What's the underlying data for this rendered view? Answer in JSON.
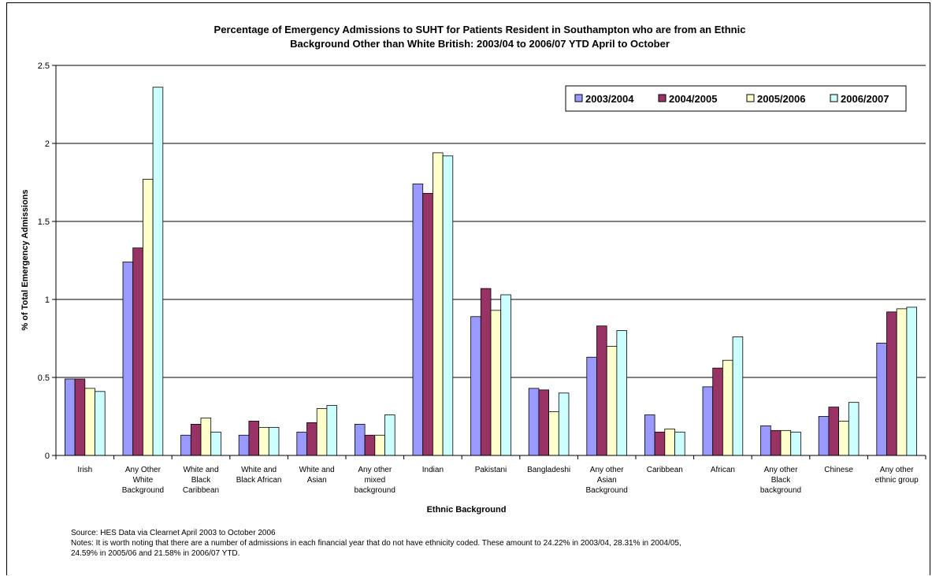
{
  "chart_data": {
    "type": "bar",
    "title_lines": [
      "Percentage of Emergency Admissions to SUHT for Patients Resident in Southampton who are from an Ethnic",
      "Background Other than White British: 2003/04 to 2006/07 YTD April to October"
    ],
    "xlabel": "Ethnic Background",
    "ylabel": "% of Total Emergency Admissions",
    "ylim": [
      0,
      2.5
    ],
    "yticks": [
      "0",
      "0.5",
      "1",
      "1.5",
      "2",
      "2.5"
    ],
    "grid": true,
    "legend_position": "top-right",
    "categories": [
      [
        "Irish"
      ],
      [
        "Any Other",
        "White",
        "Background"
      ],
      [
        "White and",
        "Black",
        "Caribbean"
      ],
      [
        "White and",
        "Black African"
      ],
      [
        "White and",
        "Asian"
      ],
      [
        "Any other",
        "mixed",
        "background"
      ],
      [
        "Indian"
      ],
      [
        "Pakistani"
      ],
      [
        "Bangladeshi"
      ],
      [
        "Any other",
        "Asian",
        "Background"
      ],
      [
        "Caribbean"
      ],
      [
        "African"
      ],
      [
        "Any other",
        "Black",
        "background"
      ],
      [
        "Chinese"
      ],
      [
        "Any other",
        "ethnic group"
      ]
    ],
    "series": [
      {
        "name": "2003/2004",
        "color": "#9999ff",
        "values": [
          0.49,
          1.24,
          0.13,
          0.13,
          0.15,
          0.2,
          1.74,
          0.89,
          0.43,
          0.63,
          0.26,
          0.44,
          0.19,
          0.25,
          0.72
        ]
      },
      {
        "name": "2004/2005",
        "color": "#993366",
        "values": [
          0.49,
          1.33,
          0.2,
          0.22,
          0.21,
          0.13,
          1.68,
          1.07,
          0.42,
          0.83,
          0.15,
          0.56,
          0.16,
          0.31,
          0.92
        ]
      },
      {
        "name": "2005/2006",
        "color": "#ffffcc",
        "values": [
          0.43,
          1.77,
          0.24,
          0.18,
          0.3,
          0.13,
          1.94,
          0.93,
          0.28,
          0.7,
          0.17,
          0.61,
          0.16,
          0.22,
          0.94
        ]
      },
      {
        "name": "2006/2007",
        "color": "#ccffff",
        "values": [
          0.41,
          2.36,
          0.15,
          0.18,
          0.32,
          0.26,
          1.92,
          1.03,
          0.4,
          0.8,
          0.15,
          0.76,
          0.15,
          0.34,
          0.95
        ]
      }
    ]
  },
  "notes": {
    "source": "Source: HES Data via Clearnet April 2003 to October 2006",
    "line1": "Notes: It is worth noting that there are a number of admissions in each financial year that do not have ethnicity coded. These amount to 24.22% in 2003/04, 28.31% in 2004/05,",
    "line2": "24.59% in 2005/06 and 21.58% in 2006/07 YTD."
  }
}
